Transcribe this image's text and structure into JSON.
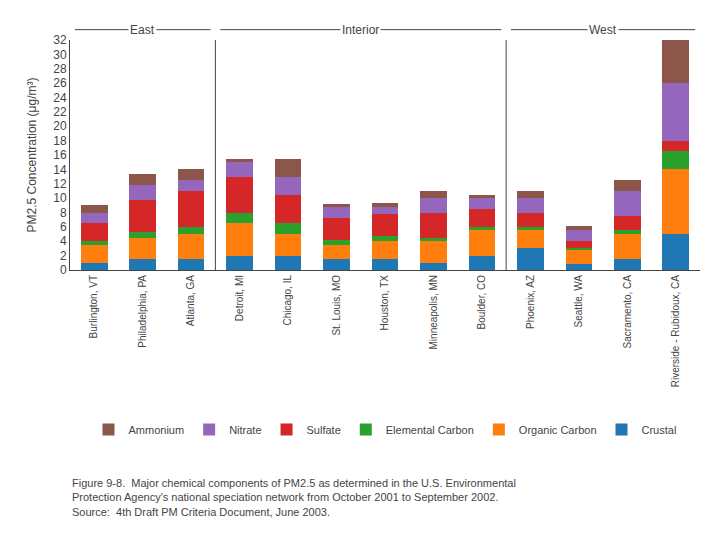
{
  "chart_data": {
    "type": "bar",
    "stacked": true,
    "ylabel": "PM2.5 Concentration (μg/m³)",
    "categories": [
      "Burlington, VT",
      "Philadelphia, PA",
      "Atlanta, GA",
      "Detroit, MI",
      "Chicago, IL",
      "St. Louis, MO",
      "Houston, TX",
      "Minneapolis, MN",
      "Boulder, CO",
      "Phoenix, AZ",
      "Seattle, WA",
      "Sacramento, CA",
      "Riverside - Rubidoux, CA"
    ],
    "series": [
      {
        "name": "Crustal",
        "values": [
          1.0,
          1.5,
          1.5,
          2.0,
          2.0,
          1.5,
          1.5,
          1.0,
          2.0,
          3.0,
          0.8,
          1.5,
          5.0
        ]
      },
      {
        "name": "Organic Carbon",
        "values": [
          2.5,
          3.0,
          3.5,
          4.5,
          3.0,
          2.0,
          2.5,
          3.0,
          3.5,
          2.5,
          2.0,
          3.5,
          9.0
        ]
      },
      {
        "name": "Elemental Carbon",
        "values": [
          0.5,
          0.8,
          1.0,
          1.5,
          1.5,
          0.7,
          0.8,
          0.5,
          0.5,
          0.5,
          0.3,
          0.5,
          2.5
        ]
      },
      {
        "name": "Sulfate",
        "values": [
          2.5,
          4.5,
          5.0,
          5.0,
          4.0,
          3.0,
          3.0,
          3.5,
          2.5,
          2.0,
          1.0,
          2.0,
          1.5
        ]
      },
      {
        "name": "Nitrate",
        "values": [
          1.5,
          2.0,
          1.5,
          2.0,
          2.5,
          1.5,
          1.0,
          2.0,
          1.5,
          2.0,
          1.5,
          3.5,
          8.0
        ]
      },
      {
        "name": "Ammonium",
        "values": [
          1.0,
          1.5,
          1.5,
          0.5,
          2.5,
          0.5,
          0.5,
          1.0,
          0.5,
          1.0,
          0.5,
          1.5,
          6.0
        ]
      }
    ],
    "annotations": [
      {
        "text": "East",
        "from": "Burlington, VT",
        "to": "Atlanta, GA"
      },
      {
        "text": "Interior",
        "from": "Detroit, MI",
        "to": "Boulder, CO"
      },
      {
        "text": "West",
        "from": "Phoenix, AZ",
        "to": "Riverside - Rubidoux, CA"
      }
    ],
    "caption": [
      "Figure 9-8.  Major chemical components of PM2.5 as determined in the U.S. Environmental",
      "Protection Agency's national speciation network from October 2001 to September 2002.",
      "Source:  4th Draft PM Criteria Document, June 2003."
    ],
    "ylim": [
      0,
      32
    ],
    "yticks": [
      0,
      2,
      4,
      6,
      8,
      10,
      12,
      14,
      16,
      18,
      20,
      22,
      24,
      26,
      28,
      30,
      32
    ],
    "grid": false,
    "legend": "bottom"
  }
}
